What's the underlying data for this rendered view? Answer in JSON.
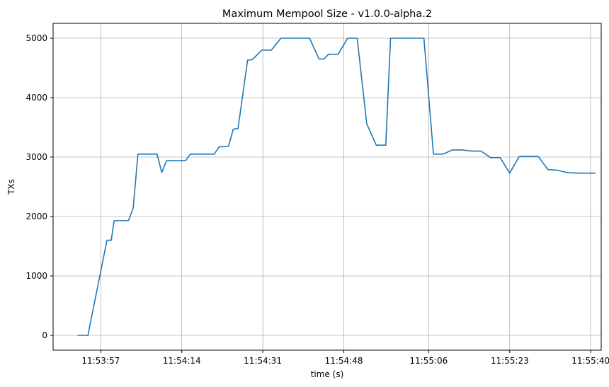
{
  "chart_data": {
    "type": "line",
    "title": "Maximum Mempool Size  -  v1.0.0-alpha.2",
    "xlabel": "time (s)",
    "ylabel": "TXs",
    "xlim": [
      -3,
      112
    ],
    "ylim": [
      -250,
      5250
    ],
    "grid": true,
    "line_color": "#1f77b4",
    "x_ticks": [
      {
        "value": 7,
        "label": "11:53:57"
      },
      {
        "value": 24,
        "label": "11:54:14"
      },
      {
        "value": 41,
        "label": "11:54:31"
      },
      {
        "value": 58,
        "label": "11:54:48"
      },
      {
        "value": 75.8,
        "label": "11:55:06"
      },
      {
        "value": 92.8,
        "label": "11:55:23"
      },
      {
        "value": 109.8,
        "label": "11:55:40"
      }
    ],
    "y_ticks": [
      {
        "value": 0,
        "label": "0"
      },
      {
        "value": 1000,
        "label": "1000"
      },
      {
        "value": 2000,
        "label": "2000"
      },
      {
        "value": 3000,
        "label": "3000"
      },
      {
        "value": 4000,
        "label": "4000"
      },
      {
        "value": 5000,
        "label": "5000"
      }
    ],
    "series": [
      {
        "x": [
          2.1,
          4.3,
          8.3,
          9.2,
          9.8,
          12.8,
          13.8,
          14.8,
          18.8,
          19.8,
          20.8,
          24.8,
          25.8,
          26.8,
          30.8,
          31.8,
          33.8,
          34.8,
          35.8,
          37.8,
          38.8,
          40.8,
          42.8,
          44.8,
          46.8,
          48.8,
          50.8,
          52.8,
          53.8,
          54.8,
          56.8,
          58.8,
          60.8,
          62.8,
          64.8,
          66.8,
          67.8,
          68.8,
          72.8,
          74.8,
          76.8,
          78.8,
          80.8,
          82.8,
          84.8,
          86.8,
          88.8,
          90.8,
          92.8,
          94.8,
          96.8,
          98.8,
          100.8,
          102.8,
          104.8,
          106.8,
          108.8,
          110.8
        ],
        "y": [
          0,
          0,
          1600,
          1600,
          1930,
          1930,
          2140,
          3050,
          3050,
          2740,
          2940,
          2940,
          3050,
          3050,
          3050,
          3170,
          3180,
          3470,
          3480,
          4630,
          4640,
          4800,
          4800,
          5000,
          5000,
          5000,
          5000,
          4650,
          4650,
          4730,
          4730,
          5000,
          5000,
          3560,
          3200,
          3200,
          5000,
          5000,
          5000,
          5000,
          3050,
          3050,
          3120,
          3120,
          3100,
          3100,
          2990,
          2990,
          2730,
          3010,
          3010,
          3010,
          2790,
          2780,
          2740,
          2730,
          2730,
          2730
        ]
      }
    ]
  }
}
